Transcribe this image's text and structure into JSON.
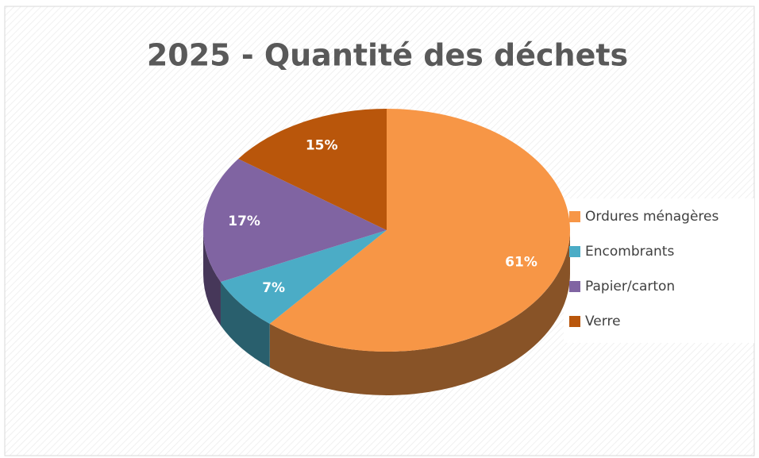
{
  "chart_data": {
    "type": "pie",
    "title": "2025 - Quantité des déchets",
    "categories": [
      "Ordures ménagères",
      "Encombrants",
      "Papier/carton",
      "Verre"
    ],
    "values": [
      61,
      7,
      17,
      15
    ],
    "value_labels": [
      "61%",
      "7%",
      "17%",
      "15%"
    ],
    "colors": [
      "#f79646",
      "#4bacc6",
      "#8064a2",
      "#b9560b"
    ],
    "legend": "right"
  }
}
